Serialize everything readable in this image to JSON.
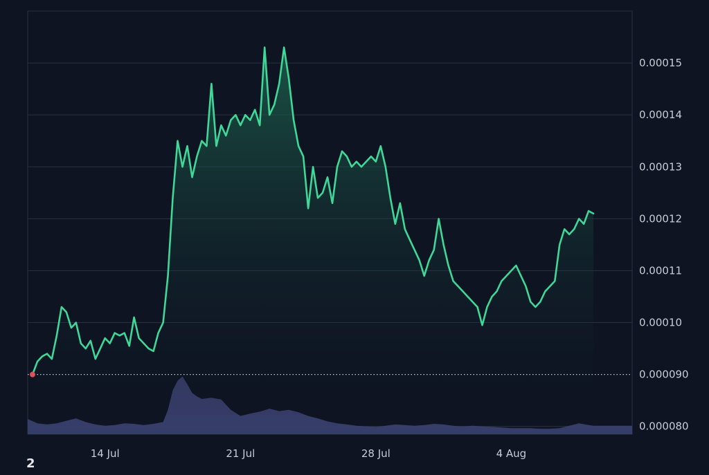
{
  "footer_mark": "2",
  "colors": {
    "background": "#0e1422",
    "price_line": "#3fd898",
    "price_fill_top": "#1f6a52",
    "volume_fill": "#3a3f6e",
    "grid": "#2a3142",
    "baseline_dotted": "#c8ccd6",
    "start_marker": "#e0505a"
  },
  "chart_data": {
    "type": "area",
    "x_ticks": [
      {
        "date": "2024-07-14",
        "label": "14 Jul"
      },
      {
        "date": "2024-07-21",
        "label": "21 Jul"
      },
      {
        "date": "2024-07-28",
        "label": "28 Jul"
      },
      {
        "date": "2024-08-04",
        "label": "4 Aug"
      }
    ],
    "y_ticks": [
      {
        "value": 0.00015,
        "label": "0.00015"
      },
      {
        "value": 0.00014,
        "label": "0.00014"
      },
      {
        "value": 0.00013,
        "label": "0.00013"
      },
      {
        "value": 0.00012,
        "label": "0.00012"
      },
      {
        "value": 0.00011,
        "label": "0.00011"
      },
      {
        "value": 0.0001,
        "label": "0.00010"
      },
      {
        "value": 9e-05,
        "label": "0.000090"
      },
      {
        "value": 8e-05,
        "label": "0.000080"
      }
    ],
    "ylim": [
      7.85e-05,
      0.00016
    ],
    "xlim": [
      "2024-07-10",
      "2024-08-10T06:00"
    ],
    "baseline_value": 9e-05,
    "grid": true,
    "series": [
      {
        "kind": "price",
        "points": [
          [
            "2024-07-10T06:00",
            9e-05
          ],
          [
            "2024-07-10T12:00",
            9.25e-05
          ],
          [
            "2024-07-10T18:00",
            9.35e-05
          ],
          [
            "2024-07-11T00:00",
            9.4e-05
          ],
          [
            "2024-07-11T06:00",
            9.3e-05
          ],
          [
            "2024-07-11T12:00",
            9.75e-05
          ],
          [
            "2024-07-11T18:00",
            0.000103
          ],
          [
            "2024-07-12T00:00",
            0.000102
          ],
          [
            "2024-07-12T06:00",
            9.9e-05
          ],
          [
            "2024-07-12T12:00",
            0.0001
          ],
          [
            "2024-07-12T18:00",
            9.6e-05
          ],
          [
            "2024-07-13T00:00",
            9.5e-05
          ],
          [
            "2024-07-13T06:00",
            9.65e-05
          ],
          [
            "2024-07-13T12:00",
            9.3e-05
          ],
          [
            "2024-07-13T18:00",
            9.5e-05
          ],
          [
            "2024-07-14T00:00",
            9.7e-05
          ],
          [
            "2024-07-14T06:00",
            9.6e-05
          ],
          [
            "2024-07-14T12:00",
            9.8e-05
          ],
          [
            "2024-07-14T18:00",
            9.75e-05
          ],
          [
            "2024-07-15T00:00",
            9.8e-05
          ],
          [
            "2024-07-15T06:00",
            9.55e-05
          ],
          [
            "2024-07-15T12:00",
            0.000101
          ],
          [
            "2024-07-15T18:00",
            9.7e-05
          ],
          [
            "2024-07-16T00:00",
            9.6e-05
          ],
          [
            "2024-07-16T06:00",
            9.5e-05
          ],
          [
            "2024-07-16T12:00",
            9.45e-05
          ],
          [
            "2024-07-16T18:00",
            9.8e-05
          ],
          [
            "2024-07-17T00:00",
            0.0001
          ],
          [
            "2024-07-17T06:00",
            0.000109
          ],
          [
            "2024-07-17T12:00",
            0.000124
          ],
          [
            "2024-07-17T18:00",
            0.000135
          ],
          [
            "2024-07-18T00:00",
            0.00013
          ],
          [
            "2024-07-18T06:00",
            0.000134
          ],
          [
            "2024-07-18T12:00",
            0.000128
          ],
          [
            "2024-07-18T18:00",
            0.000132
          ],
          [
            "2024-07-19T00:00",
            0.000135
          ],
          [
            "2024-07-19T06:00",
            0.000134
          ],
          [
            "2024-07-19T12:00",
            0.000146
          ],
          [
            "2024-07-19T18:00",
            0.000134
          ],
          [
            "2024-07-20T00:00",
            0.000138
          ],
          [
            "2024-07-20T06:00",
            0.000136
          ],
          [
            "2024-07-20T12:00",
            0.000139
          ],
          [
            "2024-07-20T18:00",
            0.00014
          ],
          [
            "2024-07-21T00:00",
            0.000138
          ],
          [
            "2024-07-21T06:00",
            0.00014
          ],
          [
            "2024-07-21T12:00",
            0.000139
          ],
          [
            "2024-07-21T18:00",
            0.000141
          ],
          [
            "2024-07-22T00:00",
            0.000138
          ],
          [
            "2024-07-22T06:00",
            0.000153
          ],
          [
            "2024-07-22T12:00",
            0.00014
          ],
          [
            "2024-07-22T18:00",
            0.000142
          ],
          [
            "2024-07-23T00:00",
            0.000146
          ],
          [
            "2024-07-23T06:00",
            0.000153
          ],
          [
            "2024-07-23T12:00",
            0.000147
          ],
          [
            "2024-07-23T18:00",
            0.000139
          ],
          [
            "2024-07-24T00:00",
            0.000134
          ],
          [
            "2024-07-24T06:00",
            0.000132
          ],
          [
            "2024-07-24T12:00",
            0.000122
          ],
          [
            "2024-07-24T18:00",
            0.00013
          ],
          [
            "2024-07-25T00:00",
            0.000124
          ],
          [
            "2024-07-25T06:00",
            0.000125
          ],
          [
            "2024-07-25T12:00",
            0.000128
          ],
          [
            "2024-07-25T18:00",
            0.000123
          ],
          [
            "2024-07-26T00:00",
            0.00013
          ],
          [
            "2024-07-26T06:00",
            0.000133
          ],
          [
            "2024-07-26T12:00",
            0.000132
          ],
          [
            "2024-07-26T18:00",
            0.00013
          ],
          [
            "2024-07-27T00:00",
            0.000131
          ],
          [
            "2024-07-27T06:00",
            0.00013
          ],
          [
            "2024-07-27T12:00",
            0.000131
          ],
          [
            "2024-07-27T18:00",
            0.000132
          ],
          [
            "2024-07-28T00:00",
            0.000131
          ],
          [
            "2024-07-28T06:00",
            0.000134
          ],
          [
            "2024-07-28T12:00",
            0.00013
          ],
          [
            "2024-07-28T18:00",
            0.000124
          ],
          [
            "2024-07-29T00:00",
            0.000119
          ],
          [
            "2024-07-29T06:00",
            0.000123
          ],
          [
            "2024-07-29T12:00",
            0.000118
          ],
          [
            "2024-07-29T18:00",
            0.000116
          ],
          [
            "2024-07-30T00:00",
            0.000114
          ],
          [
            "2024-07-30T06:00",
            0.000112
          ],
          [
            "2024-07-30T12:00",
            0.000109
          ],
          [
            "2024-07-30T18:00",
            0.000112
          ],
          [
            "2024-07-31T00:00",
            0.000114
          ],
          [
            "2024-07-31T06:00",
            0.00012
          ],
          [
            "2024-07-31T12:00",
            0.000115
          ],
          [
            "2024-07-31T18:00",
            0.000111
          ],
          [
            "2024-08-01T00:00",
            0.000108
          ],
          [
            "2024-08-01T06:00",
            0.000107
          ],
          [
            "2024-08-01T12:00",
            0.000106
          ],
          [
            "2024-08-01T18:00",
            0.000105
          ],
          [
            "2024-08-02T00:00",
            0.000104
          ],
          [
            "2024-08-02T06:00",
            0.000103
          ],
          [
            "2024-08-02T12:00",
            9.95e-05
          ],
          [
            "2024-08-02T18:00",
            0.000103
          ],
          [
            "2024-08-03T00:00",
            0.000105
          ],
          [
            "2024-08-03T06:00",
            0.000106
          ],
          [
            "2024-08-03T12:00",
            0.000108
          ],
          [
            "2024-08-03T18:00",
            0.000109
          ],
          [
            "2024-08-04T00:00",
            0.00011
          ],
          [
            "2024-08-04T06:00",
            0.000111
          ],
          [
            "2024-08-04T12:00",
            0.000109
          ],
          [
            "2024-08-04T18:00",
            0.000107
          ],
          [
            "2024-08-05T00:00",
            0.000104
          ],
          [
            "2024-08-05T06:00",
            0.000103
          ],
          [
            "2024-08-05T12:00",
            0.000104
          ],
          [
            "2024-08-05T18:00",
            0.000106
          ],
          [
            "2024-08-06T00:00",
            0.000107
          ],
          [
            "2024-08-06T06:00",
            0.000108
          ],
          [
            "2024-08-06T12:00",
            0.000115
          ],
          [
            "2024-08-06T18:00",
            0.000118
          ],
          [
            "2024-08-07T00:00",
            0.000117
          ],
          [
            "2024-08-07T06:00",
            0.000118
          ],
          [
            "2024-08-07T12:00",
            0.00012
          ],
          [
            "2024-08-07T18:00",
            0.000119
          ],
          [
            "2024-08-08T00:00",
            0.0001215
          ],
          [
            "2024-08-08T06:00",
            0.000121
          ]
        ]
      },
      {
        "kind": "volume",
        "points": [
          [
            "2024-07-10T00:00",
            0.25
          ],
          [
            "2024-07-10T12:00",
            0.18
          ],
          [
            "2024-07-11T00:00",
            0.16
          ],
          [
            "2024-07-11T12:00",
            0.18
          ],
          [
            "2024-07-12T00:00",
            0.22
          ],
          [
            "2024-07-12T12:00",
            0.26
          ],
          [
            "2024-07-13T00:00",
            0.2
          ],
          [
            "2024-07-13T12:00",
            0.16
          ],
          [
            "2024-07-14T00:00",
            0.14
          ],
          [
            "2024-07-14T12:00",
            0.15
          ],
          [
            "2024-07-15T00:00",
            0.18
          ],
          [
            "2024-07-15T12:00",
            0.17
          ],
          [
            "2024-07-16T00:00",
            0.15
          ],
          [
            "2024-07-16T12:00",
            0.17
          ],
          [
            "2024-07-17T00:00",
            0.2
          ],
          [
            "2024-07-17T06:00",
            0.4
          ],
          [
            "2024-07-17T12:00",
            0.72
          ],
          [
            "2024-07-17T18:00",
            0.88
          ],
          [
            "2024-07-18T00:00",
            0.95
          ],
          [
            "2024-07-18T06:00",
            0.82
          ],
          [
            "2024-07-18T12:00",
            0.68
          ],
          [
            "2024-07-18T18:00",
            0.62
          ],
          [
            "2024-07-19T00:00",
            0.58
          ],
          [
            "2024-07-19T12:00",
            0.6
          ],
          [
            "2024-07-20T00:00",
            0.57
          ],
          [
            "2024-07-20T12:00",
            0.4
          ],
          [
            "2024-07-21T00:00",
            0.3
          ],
          [
            "2024-07-21T12:00",
            0.34
          ],
          [
            "2024-07-22T00:00",
            0.37
          ],
          [
            "2024-07-22T12:00",
            0.42
          ],
          [
            "2024-07-23T00:00",
            0.38
          ],
          [
            "2024-07-23T12:00",
            0.4
          ],
          [
            "2024-07-24T00:00",
            0.36
          ],
          [
            "2024-07-24T12:00",
            0.3
          ],
          [
            "2024-07-25T00:00",
            0.26
          ],
          [
            "2024-07-25T12:00",
            0.21
          ],
          [
            "2024-07-26T00:00",
            0.18
          ],
          [
            "2024-07-26T12:00",
            0.16
          ],
          [
            "2024-07-27T00:00",
            0.14
          ],
          [
            "2024-07-27T12:00",
            0.13
          ],
          [
            "2024-07-28T00:00",
            0.12
          ],
          [
            "2024-07-28T12:00",
            0.14
          ],
          [
            "2024-07-29T00:00",
            0.16
          ],
          [
            "2024-07-29T12:00",
            0.15
          ],
          [
            "2024-07-30T00:00",
            0.14
          ],
          [
            "2024-07-30T12:00",
            0.15
          ],
          [
            "2024-07-31T00:00",
            0.17
          ],
          [
            "2024-07-31T12:00",
            0.16
          ],
          [
            "2024-08-01T00:00",
            0.14
          ],
          [
            "2024-08-01T12:00",
            0.13
          ],
          [
            "2024-08-02T00:00",
            0.14
          ],
          [
            "2024-08-02T12:00",
            0.13
          ],
          [
            "2024-08-03T00:00",
            0.12
          ],
          [
            "2024-08-03T12:00",
            0.11
          ],
          [
            "2024-08-04T00:00",
            0.1
          ],
          [
            "2024-08-04T12:00",
            0.1
          ],
          [
            "2024-08-05T00:00",
            0.1
          ],
          [
            "2024-08-05T12:00",
            0.09
          ],
          [
            "2024-08-06T00:00",
            0.09
          ],
          [
            "2024-08-06T12:00",
            0.1
          ],
          [
            "2024-08-07T00:00",
            0.14
          ],
          [
            "2024-08-07T12:00",
            0.18
          ],
          [
            "2024-08-08T00:00",
            0.15
          ],
          [
            "2024-08-08T06:00",
            0.14
          ]
        ]
      }
    ]
  }
}
